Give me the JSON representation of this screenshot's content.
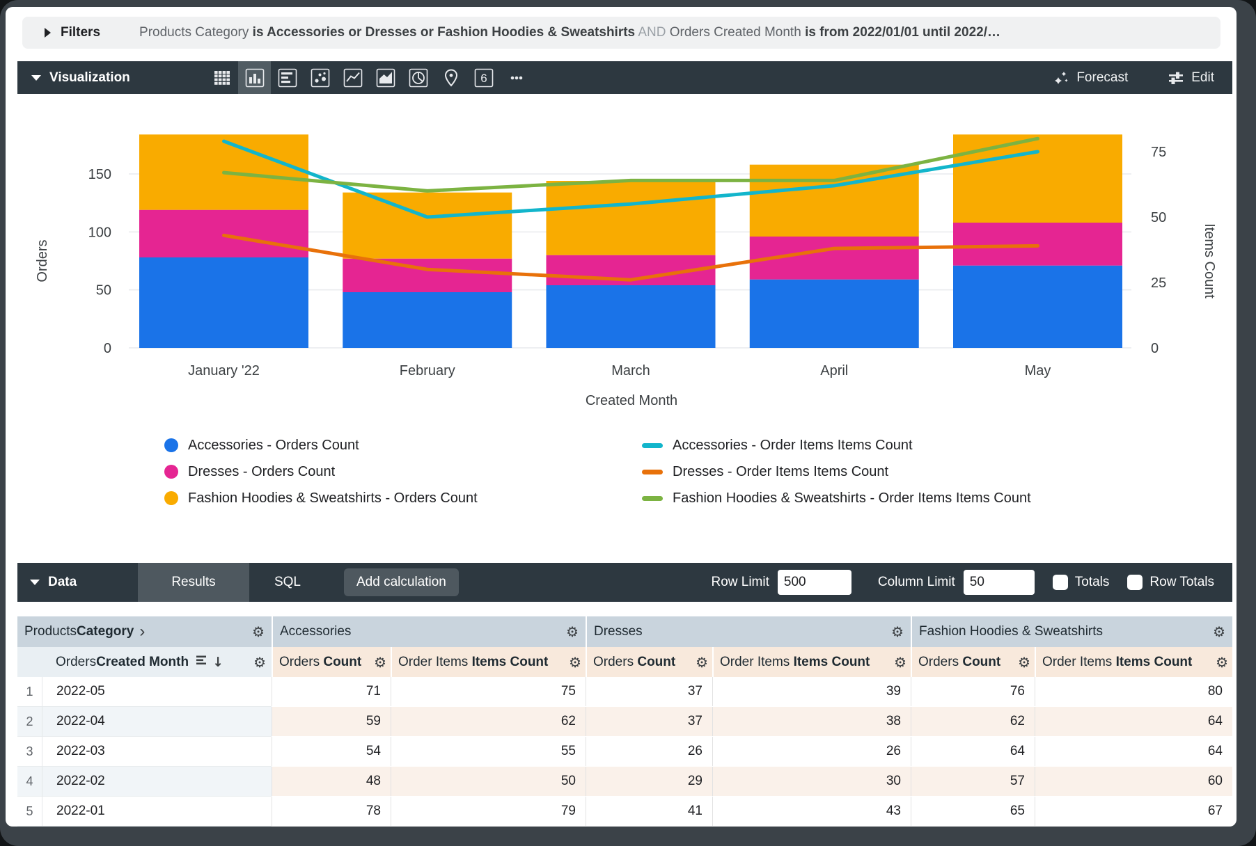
{
  "filters": {
    "label": "Filters",
    "parts": [
      {
        "text": "Products Category ",
        "style": "muted"
      },
      {
        "text": "is Accessories or Dresses or Fashion Hoodies & Sweatshirts",
        "style": "bold"
      },
      {
        "text": " AND ",
        "style": "and"
      },
      {
        "text": "Orders Created Month ",
        "style": "muted"
      },
      {
        "text": "is from 2022/01/01 until 2022/…",
        "style": "bold"
      }
    ]
  },
  "viz": {
    "label": "Visualization",
    "icons": [
      {
        "name": "table"
      },
      {
        "name": "column",
        "active": true
      },
      {
        "name": "bar"
      },
      {
        "name": "scatter"
      },
      {
        "name": "line"
      },
      {
        "name": "area"
      },
      {
        "name": "pie"
      },
      {
        "name": "map"
      },
      {
        "name": "single-value",
        "label": "6"
      },
      {
        "name": "more"
      }
    ],
    "forecast_label": "Forecast",
    "edit_label": "Edit"
  },
  "chart_data": {
    "type": "combo",
    "categories": [
      "January '22",
      "February",
      "March",
      "April",
      "May"
    ],
    "xlabel": "Created Month",
    "left_axis": {
      "label": "Orders",
      "ticks": [
        0,
        50,
        100,
        150
      ],
      "range": [
        0,
        150
      ]
    },
    "right_axis": {
      "label": "Items Count",
      "ticks": [
        0,
        25,
        50,
        75
      ],
      "range": [
        0,
        75
      ]
    },
    "bar_series": [
      {
        "name": "Accessories - Orders Count",
        "color": "#1A73E8",
        "values": [
          78,
          48,
          54,
          59,
          71
        ]
      },
      {
        "name": "Dresses - Orders Count",
        "color": "#E52592",
        "values": [
          41,
          29,
          26,
          37,
          37
        ]
      },
      {
        "name": "Fashion Hoodies & Sweatshirts - Orders Count",
        "color": "#F9AB00",
        "values": [
          65,
          57,
          64,
          62,
          76
        ]
      }
    ],
    "line_series": [
      {
        "name": "Accessories - Order Items Items Count",
        "color": "#12B5CB",
        "values": [
          79,
          50,
          55,
          62,
          75
        ]
      },
      {
        "name": "Dresses - Order Items Items Count",
        "color": "#E8710A",
        "values": [
          43,
          30,
          26,
          38,
          39
        ]
      },
      {
        "name": "Fashion Hoodies & Sweatshirts - Order Items Items Count",
        "color": "#7CB342",
        "values": [
          67,
          60,
          64,
          64,
          80
        ]
      }
    ],
    "grid": true,
    "legend_position": "bottom"
  },
  "legend": {
    "left": [
      {
        "label": "Accessories - Orders Count",
        "color": "#1A73E8"
      },
      {
        "label": "Dresses - Orders Count",
        "color": "#E52592"
      },
      {
        "label": "Fashion Hoodies & Sweatshirts - Orders Count",
        "color": "#F9AB00"
      }
    ],
    "right": [
      {
        "label": "Accessories - Order Items Items Count",
        "color": "#12B5CB"
      },
      {
        "label": "Dresses - Order Items Items Count",
        "color": "#E8710A"
      },
      {
        "label": "Fashion Hoodies & Sweatshirts - Order Items Items Count",
        "color": "#7CB342"
      }
    ]
  },
  "data_panel": {
    "label": "Data",
    "tabs": [
      {
        "label": "Results",
        "active": true
      },
      {
        "label": "SQL",
        "active": false
      }
    ],
    "add_calculation_label": "Add calculation",
    "row_limit_label": "Row Limit",
    "row_limit_value": "500",
    "column_limit_label": "Column Limit",
    "column_limit_value": "50",
    "totals_label": "Totals",
    "totals_checked": false,
    "row_totals_label": "Row Totals",
    "row_totals_checked": false
  },
  "table": {
    "group_headers": [
      {
        "parts": [
          {
            "t": "Products ",
            "b": false
          },
          {
            "t": "Category",
            "b": true
          }
        ],
        "chevron": true
      },
      {
        "parts": [
          {
            "t": "Accessories",
            "b": false
          }
        ]
      },
      {
        "parts": [
          {
            "t": "Dresses",
            "b": false
          }
        ]
      },
      {
        "parts": [
          {
            "t": "Fashion Hoodies & Sweatshirts",
            "b": false
          }
        ]
      }
    ],
    "dim_header": {
      "parts": [
        {
          "t": "Orders ",
          "b": false
        },
        {
          "t": "Created Month",
          "b": true
        }
      ],
      "sorted_desc": true
    },
    "measure_header": {
      "orders": [
        {
          "t": "Orders ",
          "b": false
        },
        {
          "t": "Count",
          "b": true
        }
      ],
      "items": [
        {
          "t": "Order Items ",
          "b": false
        },
        {
          "t": "Items Count",
          "b": true
        }
      ]
    },
    "rows": [
      {
        "n": "1",
        "month": "2022-05",
        "values": [
          "71",
          "75",
          "37",
          "39",
          "76",
          "80"
        ]
      },
      {
        "n": "2",
        "month": "2022-04",
        "values": [
          "59",
          "62",
          "37",
          "38",
          "62",
          "64"
        ]
      },
      {
        "n": "3",
        "month": "2022-03",
        "values": [
          "54",
          "55",
          "26",
          "26",
          "64",
          "64"
        ]
      },
      {
        "n": "4",
        "month": "2022-02",
        "values": [
          "48",
          "50",
          "29",
          "30",
          "57",
          "60"
        ]
      },
      {
        "n": "5",
        "month": "2022-01",
        "values": [
          "78",
          "79",
          "41",
          "43",
          "65",
          "67"
        ]
      }
    ]
  }
}
